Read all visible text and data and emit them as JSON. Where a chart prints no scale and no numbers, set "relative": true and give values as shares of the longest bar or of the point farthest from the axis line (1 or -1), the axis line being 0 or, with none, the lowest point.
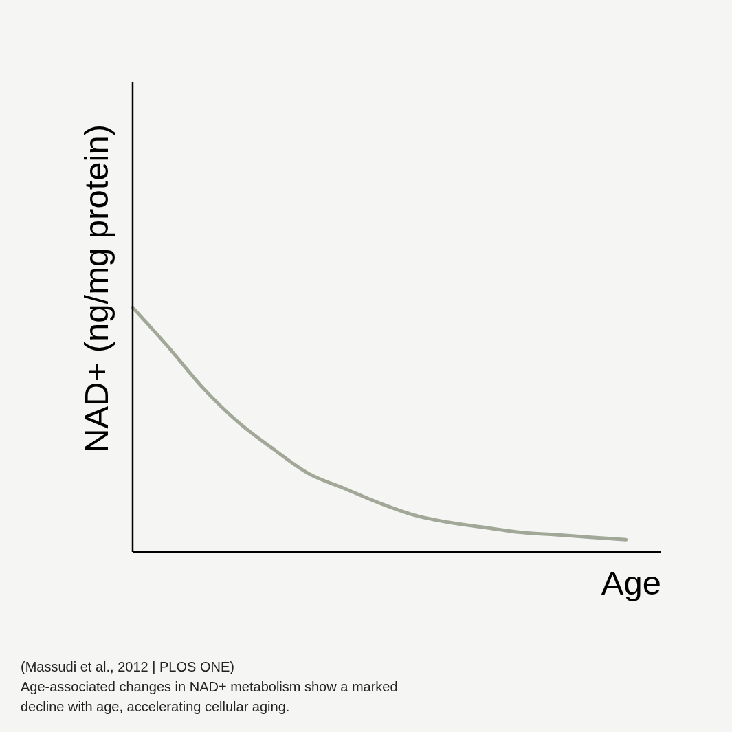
{
  "chart_data": {
    "type": "line",
    "relative": true,
    "ylabel": "NAD+ (ng/mg protein)",
    "xlabel": "Age",
    "categories": [
      null,
      null,
      null,
      null,
      null,
      null,
      null,
      null,
      null,
      null,
      null,
      null,
      null,
      null,
      null,
      null
    ],
    "series": [
      {
        "color": "#a2a898",
        "values": [
          1,
          0.84,
          0.67,
          0.53,
          0.42,
          0.32,
          0.26,
          0.2,
          0.15,
          0.12,
          0.1,
          0.08,
          0.07,
          0.06,
          0.05,
          null
        ]
      }
    ],
    "annotations": [
      "(Massudi et al., 2012 | PLOS ONE)",
      "Age-associated changes in NAD+ metabolism show a marked decline with age, accelerating cellular aging."
    ],
    "grid": false,
    "legend": false,
    "marker": "none",
    "line_style": "solid"
  }
}
